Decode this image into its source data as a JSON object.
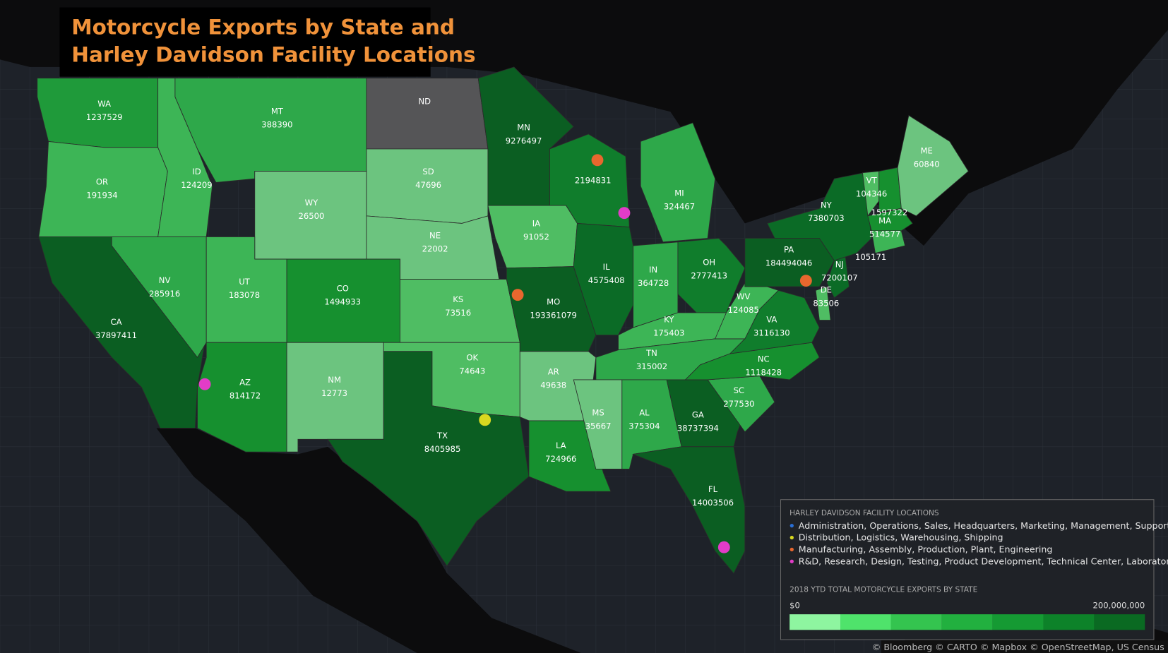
{
  "title": [
    "Motorcycle Exports by State and",
    "Harley Davidson Facility Locations"
  ],
  "states": [
    {
      "abbr": "WA",
      "value": 1237529,
      "color": "#1f9a3a"
    },
    {
      "abbr": "OR",
      "value": 191934,
      "color": "#3db556"
    },
    {
      "abbr": "CA",
      "value": 37897411,
      "color": "#0b5e22"
    },
    {
      "abbr": "ID",
      "value": 124209,
      "color": "#3db556"
    },
    {
      "abbr": "MT",
      "value": 388390,
      "color": "#2ea84a"
    },
    {
      "abbr": "ND",
      "value": null,
      "color": "#555557"
    },
    {
      "abbr": "SD",
      "value": 47696,
      "color": "#6cc47f"
    },
    {
      "abbr": "WY",
      "value": 26500,
      "color": "#6cc47f"
    },
    {
      "abbr": "NE",
      "value": 22002,
      "color": "#6cc47f"
    },
    {
      "abbr": "NV",
      "value": 285916,
      "color": "#2ea84a"
    },
    {
      "abbr": "UT",
      "value": 183078,
      "color": "#3db556"
    },
    {
      "abbr": "CO",
      "value": 1494933,
      "color": "#16902f"
    },
    {
      "abbr": "AZ",
      "value": 814172,
      "color": "#16902f"
    },
    {
      "abbr": "NM",
      "value": 12773,
      "color": "#6cc47f"
    },
    {
      "abbr": "KS",
      "value": 73516,
      "color": "#4fbd63"
    },
    {
      "abbr": "OK",
      "value": 74643,
      "color": "#4fbd63"
    },
    {
      "abbr": "TX",
      "value": 8405985,
      "color": "#0b5e22"
    },
    {
      "abbr": "IA",
      "value": 91052,
      "color": "#4fbd63"
    },
    {
      "abbr": "MN",
      "value": 9276497,
      "color": "#0b5e22"
    },
    {
      "abbr": "MO",
      "value": 193361079,
      "color": "#0b5e22"
    },
    {
      "abbr": "AR",
      "value": 49638,
      "color": "#6cc47f"
    },
    {
      "abbr": "LA",
      "value": 724966,
      "color": "#16902f"
    },
    {
      "abbr": null,
      "value": 2194831,
      "color": "#107d2c"
    },
    {
      "abbr": "IL",
      "value": 4575408,
      "color": "#0b6b26"
    },
    {
      "abbr": "MI",
      "value": 324467,
      "color": "#2ea84a"
    },
    {
      "abbr": "IN",
      "value": 364728,
      "color": "#2ea84a"
    },
    {
      "abbr": "OH",
      "value": 2777413,
      "color": "#107d2c"
    },
    {
      "abbr": "KY",
      "value": 175403,
      "color": "#3db556"
    },
    {
      "abbr": "TN",
      "value": 315002,
      "color": "#2ea84a"
    },
    {
      "abbr": "MS",
      "value": 35667,
      "color": "#6cc47f"
    },
    {
      "abbr": "AL",
      "value": 375304,
      "color": "#2ea84a"
    },
    {
      "abbr": "GA",
      "value": 38737394,
      "color": "#0b5e22"
    },
    {
      "abbr": "FL",
      "value": 14003506,
      "color": "#0b5e22"
    },
    {
      "abbr": "SC",
      "value": 277530,
      "color": "#2ea84a"
    },
    {
      "abbr": "NC",
      "value": 1118428,
      "color": "#16902f"
    },
    {
      "abbr": "VA",
      "value": 3116130,
      "color": "#107d2c"
    },
    {
      "abbr": "WV",
      "value": 124085,
      "color": "#3db556"
    },
    {
      "abbr": "PA",
      "value": 184494046,
      "color": "#0b5e22"
    },
    {
      "abbr": "NY",
      "value": 7380703,
      "color": "#0b6b26"
    },
    {
      "abbr": "NJ",
      "value": 7200107,
      "color": "#0b6b26"
    },
    {
      "abbr": "DE",
      "value": 83506,
      "color": "#4fbd63"
    },
    {
      "abbr": "VT",
      "value": 104346,
      "color": "#4fbd63"
    },
    {
      "abbr": null,
      "value": 1597322,
      "color": "#16902f"
    },
    {
      "abbr": "ME",
      "value": 60840,
      "color": "#6cc47f"
    },
    {
      "abbr": "MA",
      "value": 514577,
      "color": "#16902f"
    },
    {
      "abbr": null,
      "value": 105171,
      "color": "#3db556"
    }
  ],
  "legend": {
    "facility_title": "HARLEY DAVIDSON FACILITY LOCATIONS",
    "categories": [
      {
        "label": "Administration, Operations, Sales, Headquarters, Marketing, Management, Support",
        "color": "#2a6fd6"
      },
      {
        "label": "Distribution, Logistics, Warehousing, Shipping",
        "color": "#d8d820"
      },
      {
        "label": "Manufacturing, Assembly, Production, Plant, Engineering",
        "color": "#e8672e"
      },
      {
        "label": "R&D, Research, Design, Testing, Product Development, Technical Center, Laboratory",
        "color": "#e23cc8"
      }
    ],
    "scale_title": "2018 YTD TOTAL MOTORCYCLE EXPORTS BY STATE",
    "scale_min": "$0",
    "scale_max": "200,000,000",
    "scale_colors": [
      "#8ef5a0",
      "#4fe36b",
      "#34c44f",
      "#22b03f",
      "#159a33",
      "#0d8229",
      "#0a6a22"
    ]
  },
  "attribution": "© Bloomberg  © CARTO  © Mapbox  © OpenStreetMap, US Census"
}
